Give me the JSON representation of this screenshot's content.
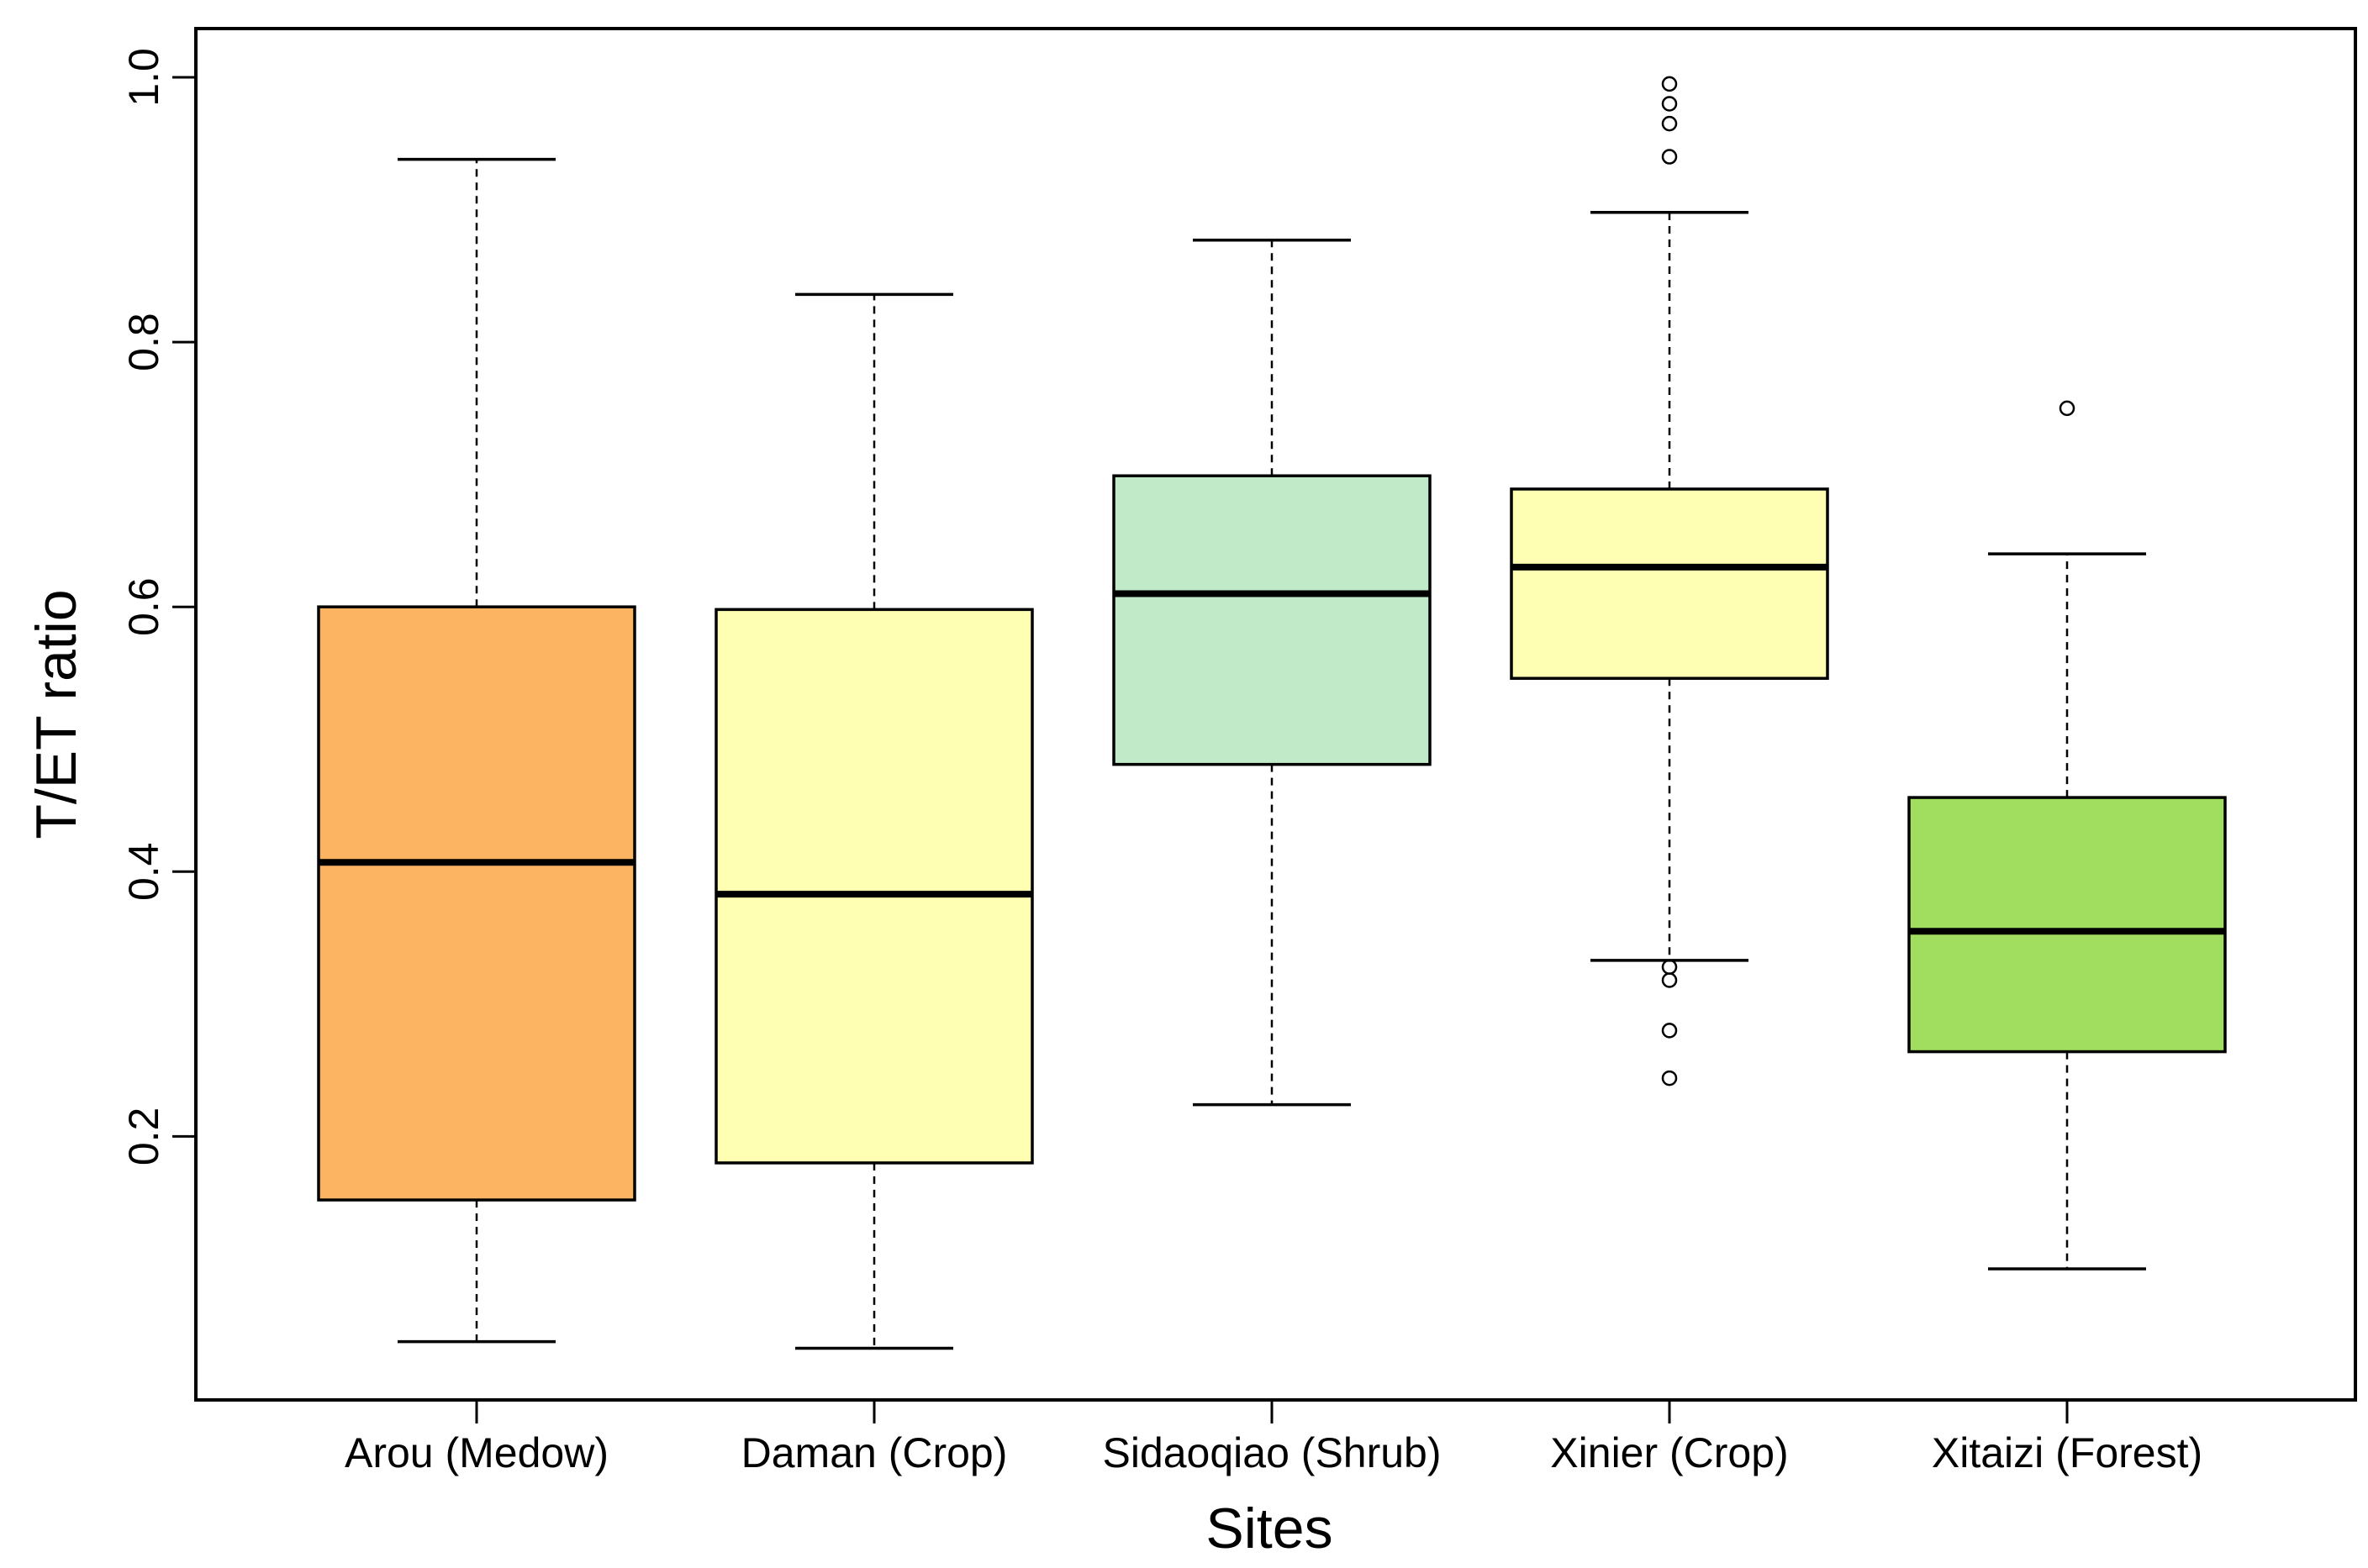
{
  "chart_data": {
    "type": "boxplot",
    "title": "",
    "xlabel": "Sites",
    "ylabel": "T/ET ratio",
    "ylim": [
      0.0,
      1.0
    ],
    "yticks": [
      "0.2",
      "0.4",
      "0.6",
      "0.8",
      "1.0"
    ],
    "ytick_values": [
      0.2,
      0.4,
      0.6,
      0.8,
      1.0
    ],
    "categories": [
      "Arou (Medow)",
      "Daman (Crop)",
      "Sidaoqiao (Shrub)",
      "Xinier (Crop)",
      "Xitaizi (Forest)"
    ],
    "boxes": [
      {
        "name": "Arou (Medow)",
        "color": "#FDB462",
        "whisker_low": 0.045,
        "q1": 0.152,
        "median": 0.407,
        "q3": 0.6,
        "whisker_high": 0.938,
        "outliers": []
      },
      {
        "name": "Daman (Crop)",
        "color": "#FFFFB3",
        "whisker_low": 0.04,
        "q1": 0.18,
        "median": 0.383,
        "q3": 0.598,
        "whisker_high": 0.836,
        "outliers": []
      },
      {
        "name": "Sidaoqiao (Shrub)",
        "color": "#C1EAC8",
        "whisker_low": 0.224,
        "q1": 0.481,
        "median": 0.61,
        "q3": 0.699,
        "whisker_high": 0.877,
        "outliers": []
      },
      {
        "name": "Xinier (Crop)",
        "color": "#FFFFB3",
        "whisker_low": 0.333,
        "q1": 0.546,
        "median": 0.63,
        "q3": 0.689,
        "whisker_high": 0.898,
        "outliers": [
          0.995,
          0.98,
          0.965,
          0.94,
          0.328,
          0.318,
          0.28,
          0.244
        ]
      },
      {
        "name": "Xitaizi (Forest)",
        "color": "#A1DD5E",
        "whisker_low": 0.1,
        "q1": 0.264,
        "median": 0.355,
        "q3": 0.456,
        "whisker_high": 0.64,
        "outliers": [
          0.75
        ]
      }
    ]
  }
}
